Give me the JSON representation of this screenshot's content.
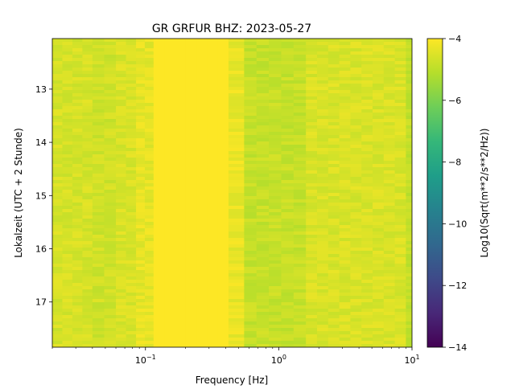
{
  "chart_data": {
    "type": "heatmap",
    "title": "GR GRFUR  BHZ: 2023-05-27",
    "xlabel": "Frequency [Hz]",
    "ylabel": "Lokalzeit (UTC + 2 Stunde)",
    "x_scale": "log",
    "xlim": [
      0.02,
      10
    ],
    "x_ticks": [
      {
        "value": 0.1,
        "base": "10",
        "exp": "−1"
      },
      {
        "value": 1,
        "base": "10",
        "exp": "0"
      },
      {
        "value": 10,
        "base": "10",
        "exp": "1"
      }
    ],
    "ylim": [
      12.05,
      17.85
    ],
    "y_inverted": true,
    "y_ticks": [
      13,
      14,
      15,
      16,
      17
    ],
    "grid": false,
    "colorbar": {
      "label": "Log10(Sqrt(m**2/s**2/Hz))",
      "range": [
        -14,
        -4
      ],
      "ticks": [
        -4,
        -6,
        -8,
        -10,
        -12,
        -14
      ],
      "tick_labels": [
        "−4",
        "−6",
        "−8",
        "−10",
        "−12",
        "−14"
      ],
      "colormap": "viridis",
      "colors": [
        "#440154",
        "#482878",
        "#3e4a89",
        "#31688e",
        "#26828e",
        "#1f9e89",
        "#35b779",
        "#6ece58",
        "#b5de2b",
        "#fde725"
      ]
    },
    "bands": [
      {
        "x_range": [
          0.02,
          0.04
        ],
        "value": -4.6
      },
      {
        "x_range": [
          0.04,
          0.06
        ],
        "value": -4.7
      },
      {
        "x_range": [
          0.06,
          0.085
        ],
        "value": -4.55
      },
      {
        "x_range": [
          0.085,
          0.115
        ],
        "value": -4.35
      },
      {
        "x_range": [
          0.115,
          0.42
        ],
        "value": -4.0
      },
      {
        "x_range": [
          0.42,
          0.55
        ],
        "value": -4.3
      },
      {
        "x_range": [
          0.55,
          1.6
        ],
        "value": -4.85
      },
      {
        "x_range": [
          1.6,
          9.0
        ],
        "value": -4.55
      },
      {
        "x_range": [
          9.0,
          10
        ],
        "value": -4.9
      }
    ]
  }
}
